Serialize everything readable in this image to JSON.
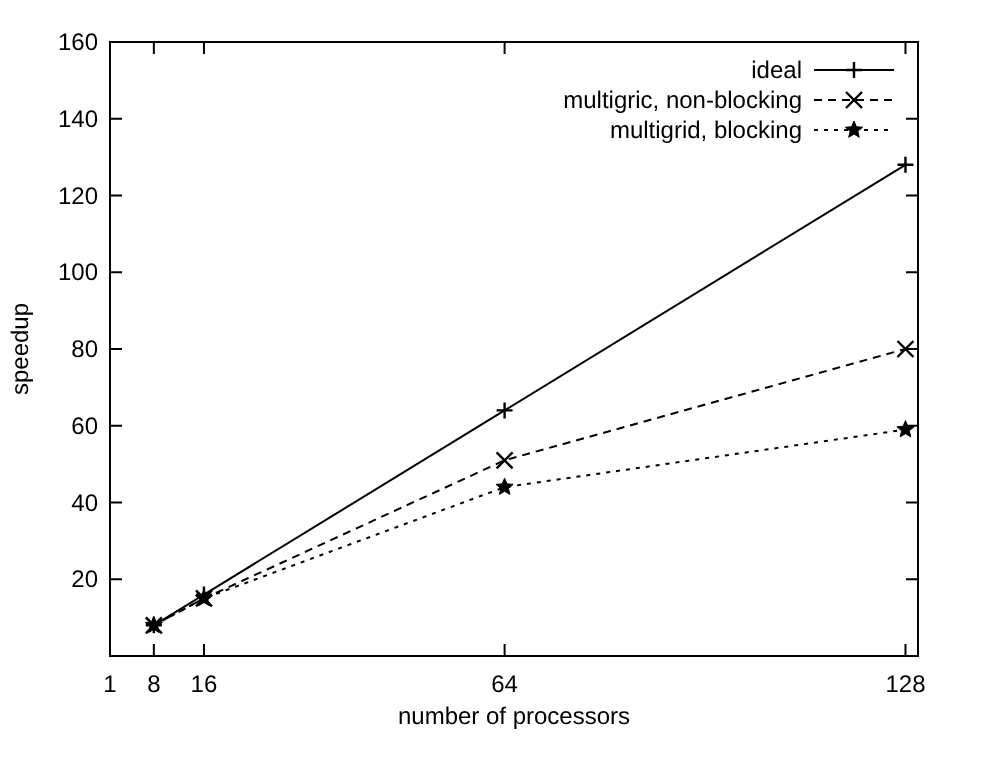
{
  "chart_data": {
    "type": "line",
    "xlabel": "number of processors",
    "ylabel": "speedup",
    "xlim": [
      1,
      130
    ],
    "xticks": [
      1,
      8,
      16,
      64,
      128
    ],
    "ylim": [
      0,
      160
    ],
    "yticks": [
      20,
      40,
      60,
      80,
      100,
      120,
      140,
      160
    ],
    "x": [
      8,
      16,
      64,
      128
    ],
    "legend": "top right",
    "grid": false,
    "series": [
      {
        "name": "ideal",
        "color": "#000000",
        "values": [
          8,
          16,
          64,
          128
        ],
        "marker": "cross",
        "line_style": "solid"
      },
      {
        "name": "multigric, non-blocking",
        "color": "#000000",
        "values": [
          8,
          15,
          51,
          80
        ],
        "marker": "x",
        "line_style": "dashed"
      },
      {
        "name": "multigrid, blocking",
        "color": "#000000",
        "values": [
          8,
          15,
          44,
          59
        ],
        "marker": "star",
        "line_style": "dotted"
      }
    ]
  }
}
